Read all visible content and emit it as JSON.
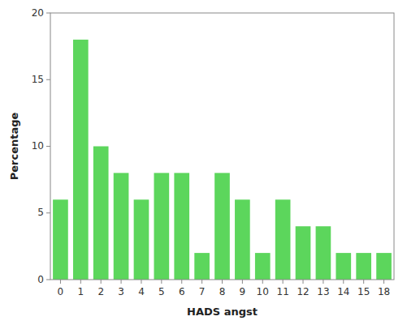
{
  "chart_data": {
    "type": "bar",
    "xlabel": "HADS angst",
    "ylabel": "Percentage",
    "categories": [
      0,
      1,
      2,
      3,
      4,
      5,
      6,
      7,
      8,
      9,
      10,
      11,
      12,
      13,
      14,
      15,
      18
    ],
    "values": [
      6,
      18,
      10,
      8,
      6,
      8,
      8,
      2,
      8,
      6,
      2,
      6,
      4,
      4,
      2,
      2,
      2
    ],
    "color": "#5cd65c",
    "ylim": [
      0,
      20
    ],
    "yticks": [
      0,
      5,
      10,
      15,
      20
    ],
    "grid": false
  }
}
